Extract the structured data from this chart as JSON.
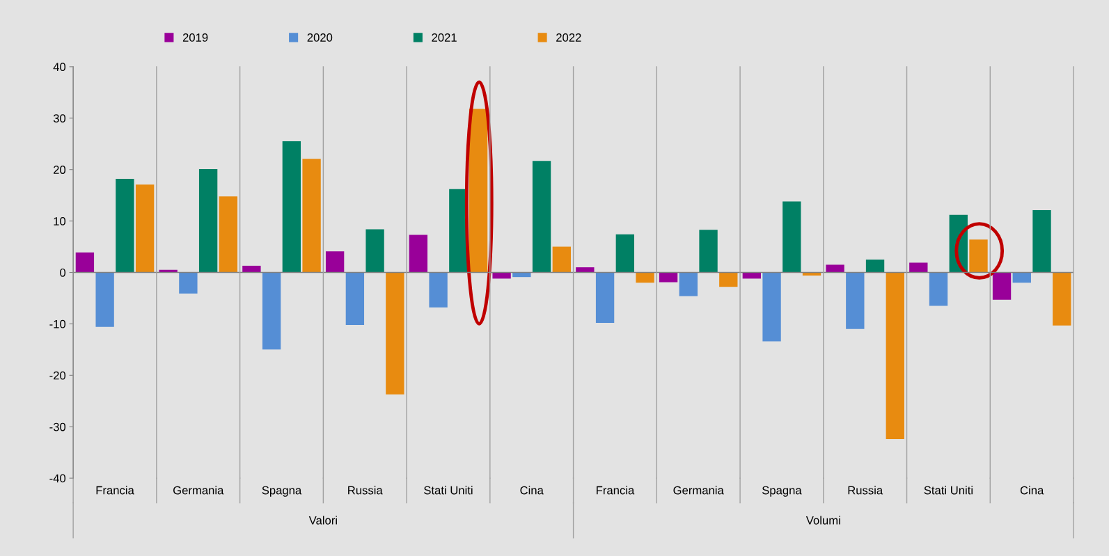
{
  "chart_data": {
    "type": "bar",
    "categories": [
      "Francia",
      "Germania",
      "Spagna",
      "Russia",
      "Stati Uniti",
      "Cina",
      "Francia",
      "Germania",
      "Spagna",
      "Russia",
      "Stati Uniti",
      "Cina"
    ],
    "series": [
      {
        "name": "2019",
        "color": "#990099",
        "values": [
          3.9,
          0.5,
          1.3,
          4.1,
          7.3,
          -1.2,
          1.0,
          -1.9,
          -1.2,
          1.5,
          1.9,
          -5.3
        ]
      },
      {
        "name": "2020",
        "color": "#558ed5",
        "values": [
          -10.6,
          -4.1,
          -15.0,
          -10.2,
          -6.8,
          -0.9,
          -9.8,
          -4.6,
          -13.4,
          -11.0,
          -6.5,
          -2.0
        ]
      },
      {
        "name": "2021",
        "color": "#008064",
        "values": [
          18.2,
          20.1,
          25.5,
          8.4,
          16.2,
          21.7,
          7.4,
          8.3,
          13.8,
          2.5,
          11.2,
          12.1
        ]
      },
      {
        "name": "2022",
        "color": "#e88b10",
        "values": [
          17.1,
          14.8,
          22.1,
          -23.7,
          31.8,
          5.0,
          -2.0,
          -2.8,
          -0.6,
          -32.4,
          6.4,
          -10.3
        ]
      }
    ],
    "ylim": [
      -40,
      40
    ],
    "yticks": [
      -40,
      -30,
      -20,
      -10,
      0,
      10,
      20,
      30,
      40
    ],
    "legend": "top",
    "annotations": [
      "Valori",
      "Volumi"
    ]
  }
}
